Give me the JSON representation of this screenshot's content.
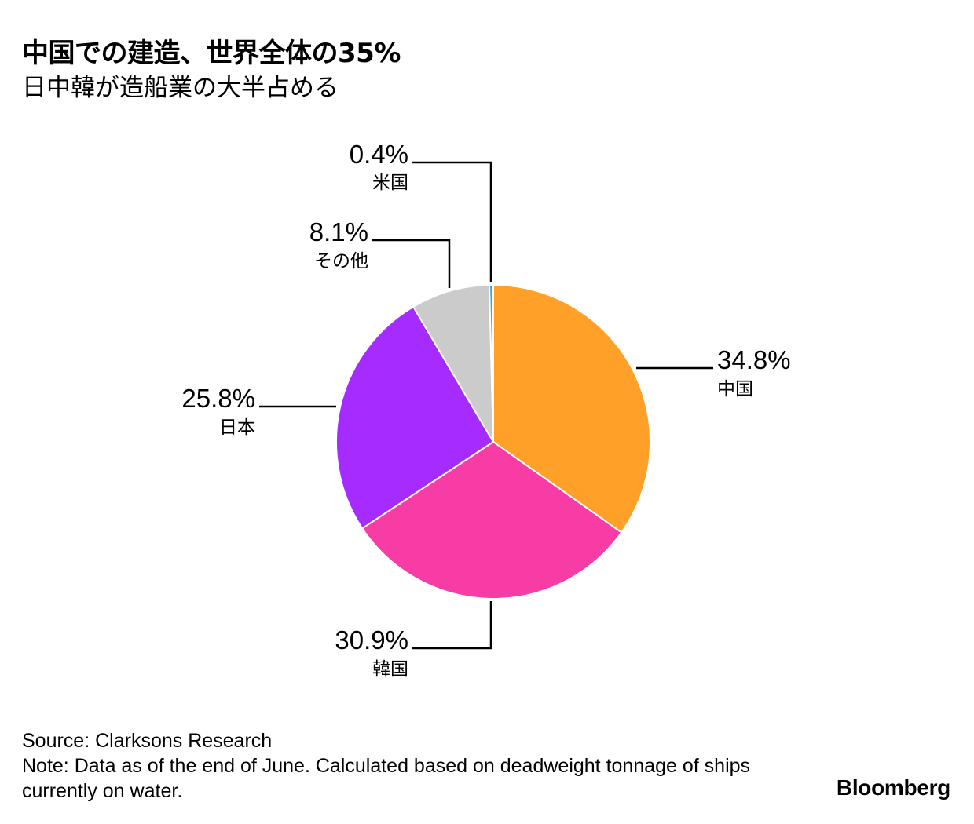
{
  "header": {
    "title": "中国での建造、世界全体の35%",
    "subtitle": "日中韓が造船業の大半占める"
  },
  "chart_data": {
    "type": "pie",
    "title": "中国での建造、世界全体の35%",
    "subtitle": "日中韓が造船業の大半占める",
    "slices": [
      {
        "key": "china",
        "label": "中国",
        "value": 34.8,
        "display": "34.8%",
        "color": "#ffa028"
      },
      {
        "key": "korea",
        "label": "韓国",
        "value": 30.9,
        "display": "30.9%",
        "color": "#f83ca6"
      },
      {
        "key": "japan",
        "label": "日本",
        "value": 25.8,
        "display": "25.8%",
        "color": "#a52bfe"
      },
      {
        "key": "other",
        "label": "その他",
        "value": 8.1,
        "display": "8.1%",
        "color": "#cbcbcb"
      },
      {
        "key": "us",
        "label": "米国",
        "value": 0.4,
        "display": "0.4%",
        "color": "#2fafe0"
      }
    ]
  },
  "footer": {
    "source": "Source: Clarksons Research",
    "note": "Note: Data as of the end of June. Calculated based on deadweight tonnage of ships currently on water."
  },
  "brand": "Bloomberg"
}
